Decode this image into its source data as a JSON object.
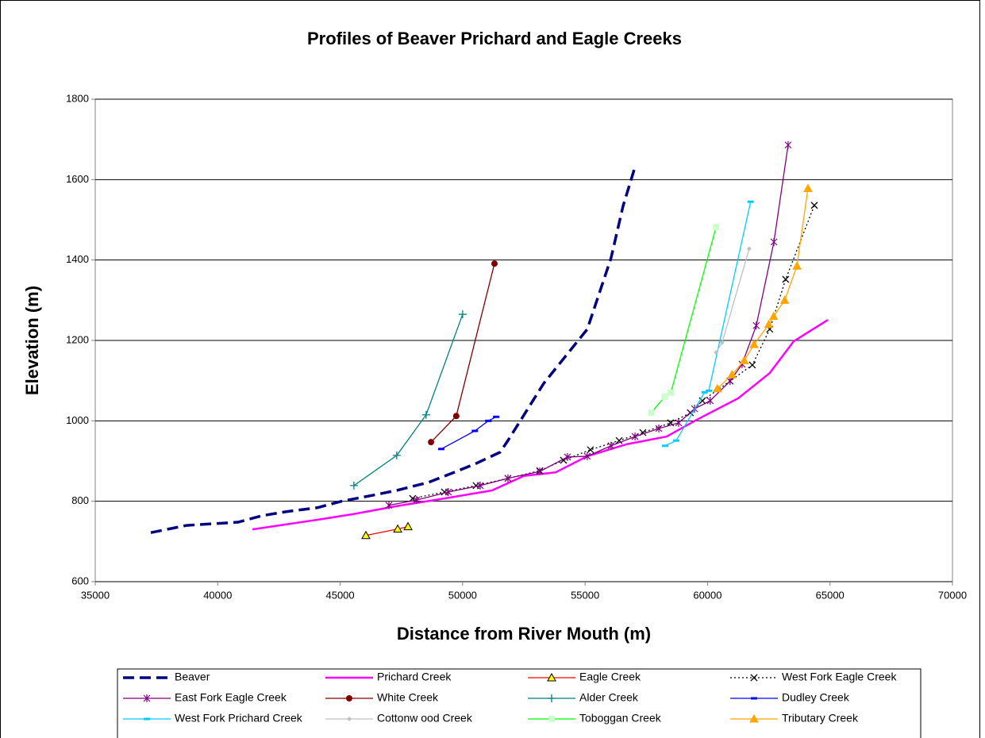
{
  "chart_data": {
    "type": "scatter",
    "title": "Profiles of Beaver Prichard and Eagle Creeks",
    "x_label": "Distance from River Mouth (m)",
    "y_label": "Elevation (m)",
    "xlim": [
      35000,
      70000
    ],
    "xticks": [
      35000,
      40000,
      45000,
      50000,
      55000,
      60000,
      65000,
      70000
    ],
    "ylim": [
      600,
      1800
    ],
    "yticks": [
      600,
      800,
      1000,
      1200,
      1400,
      1600,
      1800
    ],
    "grid": true,
    "legend": "bottom",
    "series": [
      {
        "name": "Beaver",
        "color": "#000080",
        "line": "dashed",
        "marker": "none",
        "x": [
          37270,
          38730,
          40830,
          41800,
          42780,
          44070,
          45050,
          46340,
          47310,
          48610,
          49740,
          50550,
          51530,
          51850,
          53310,
          55090,
          56060,
          56550,
          57040
        ],
        "values": [
          722,
          740,
          748,
          764,
          774,
          784,
          800,
          815,
          827,
          847,
          874,
          894,
          922,
          951,
          1093,
          1228,
          1405,
          1534,
          1632
        ]
      },
      {
        "name": "Prichard Creek",
        "color": "#ff00ff",
        "line": "solid",
        "marker": "none",
        "x": [
          41420,
          44070,
          45530,
          47310,
          49260,
          51200,
          52500,
          53800,
          55090,
          56710,
          58330,
          59630,
          61250,
          62540,
          63520,
          64910
        ],
        "values": [
          730,
          754,
          768,
          788,
          807,
          827,
          863,
          872,
          912,
          942,
          961,
          1005,
          1056,
          1119,
          1198,
          1251
        ]
      },
      {
        "name": "Eagle Creek",
        "color": "#ff0000",
        "line": "solid",
        "marker": "triangle",
        "marker_color": "#ffff00",
        "x": [
          46050,
          47350,
          47770
        ],
        "values": [
          715,
          731,
          737
        ]
      },
      {
        "name": "West Fork Eagle Creek",
        "color": "#000000",
        "line": "dotted",
        "marker": "x",
        "x": [
          47960,
          49260,
          50550,
          51850,
          53150,
          54120,
          55220,
          56390,
          57360,
          58490,
          59300,
          59790,
          60920,
          61830,
          62540,
          63190,
          64360
        ],
        "values": [
          807,
          823,
          839,
          857,
          876,
          902,
          928,
          951,
          971,
          995,
          1020,
          1050,
          1099,
          1139,
          1228,
          1352,
          1536
        ]
      },
      {
        "name": "East Fork Eagle Creek",
        "color": "#800080",
        "line": "solid",
        "marker": "asterisk",
        "x": [
          46990,
          48120,
          49420,
          50720,
          51850,
          53150,
          54280,
          55090,
          56060,
          57040,
          58010,
          58820,
          59470,
          60110,
          60920,
          61410,
          61990,
          62710,
          63290
        ],
        "values": [
          790,
          803,
          823,
          839,
          857,
          874,
          910,
          912,
          938,
          961,
          981,
          995,
          1030,
          1050,
          1099,
          1141,
          1237,
          1445,
          1686
        ]
      },
      {
        "name": "White Creek",
        "color": "#800000",
        "line": "solid",
        "marker": "circle",
        "x": [
          48710,
          49740,
          51300
        ],
        "values": [
          947,
          1012,
          1391
        ]
      },
      {
        "name": "Alder Creek",
        "color": "#008080",
        "line": "solid",
        "marker": "plus",
        "x": [
          45560,
          47310,
          48510,
          50000
        ],
        "values": [
          839,
          914,
          1015,
          1265
        ]
      },
      {
        "name": "Dudley Creek",
        "color": "#0000ff",
        "line": "solid",
        "marker": "dash",
        "x": [
          49130,
          50500,
          51050,
          51370
        ],
        "values": [
          930,
          975,
          1000,
          1010
        ]
      },
      {
        "name": "West Fork Prichard Creek",
        "color": "#00ccff",
        "line": "solid",
        "marker": "dash",
        "x": [
          58270,
          58720,
          59880,
          60050,
          61760
        ],
        "values": [
          938,
          951,
          1071,
          1075,
          1545
        ]
      },
      {
        "name": "Cottonw ood Creek",
        "color": "#c0c0c0",
        "line": "solid",
        "marker": "diamond",
        "x": [
          60350,
          60600,
          61700
        ],
        "values": [
          1170,
          1195,
          1428
        ]
      },
      {
        "name": "Toboggan Creek",
        "color": "#00ff00",
        "line": "solid",
        "marker": "square",
        "marker_color": "#ccffcc",
        "x": [
          57700,
          58250,
          58500,
          60350
        ],
        "values": [
          1020,
          1060,
          1070,
          1482
        ]
      },
      {
        "name": "Tributary Creek",
        "color": "#ffa500",
        "line": "solid",
        "marker": "triangle",
        "x": [
          60400,
          61000,
          61500,
          61900,
          62500,
          62700,
          63150,
          63650,
          64100
        ],
        "values": [
          1080,
          1115,
          1150,
          1190,
          1240,
          1260,
          1300,
          1385,
          1578
        ]
      }
    ]
  }
}
